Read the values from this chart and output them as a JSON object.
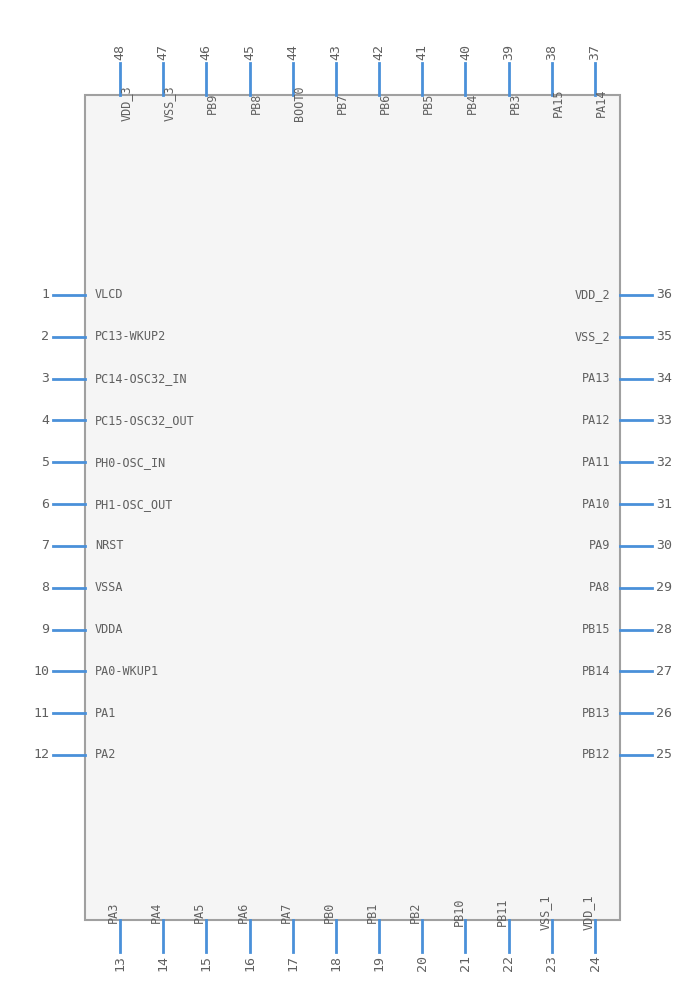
{
  "bg_color": "#ffffff",
  "box_color": "#a0a0a0",
  "pin_color": "#4a90d9",
  "text_color": "#606060",
  "num_color": "#606060",
  "fig_w": 6.88,
  "fig_h": 10.08,
  "top_pins": [
    {
      "num": 48,
      "label": "VDD_3"
    },
    {
      "num": 47,
      "label": "VSS_3"
    },
    {
      "num": 46,
      "label": "PB9"
    },
    {
      "num": 45,
      "label": "PB8"
    },
    {
      "num": 44,
      "label": "BOOT0"
    },
    {
      "num": 43,
      "label": "PB7"
    },
    {
      "num": 42,
      "label": "PB6"
    },
    {
      "num": 41,
      "label": "PB5"
    },
    {
      "num": 40,
      "label": "PB4"
    },
    {
      "num": 39,
      "label": "PB3"
    },
    {
      "num": 38,
      "label": "PA15"
    },
    {
      "num": 37,
      "label": "PA14"
    }
  ],
  "bottom_pins": [
    {
      "num": 13,
      "label": "PA3"
    },
    {
      "num": 14,
      "label": "PA4"
    },
    {
      "num": 15,
      "label": "PA5"
    },
    {
      "num": 16,
      "label": "PA6"
    },
    {
      "num": 17,
      "label": "PA7"
    },
    {
      "num": 18,
      "label": "PB0"
    },
    {
      "num": 19,
      "label": "PB1"
    },
    {
      "num": 20,
      "label": "PB2"
    },
    {
      "num": 21,
      "label": "PB10"
    },
    {
      "num": 22,
      "label": "PB11"
    },
    {
      "num": 23,
      "label": "VSS_1"
    },
    {
      "num": 24,
      "label": "VDD_1"
    }
  ],
  "left_pins": [
    {
      "num": 1,
      "label": "VLCD"
    },
    {
      "num": 2,
      "label": "PC13-WKUP2"
    },
    {
      "num": 3,
      "label": "PC14-OSC32_IN"
    },
    {
      "num": 4,
      "label": "PC15-OSC32_OUT"
    },
    {
      "num": 5,
      "label": "PH0-OSC_IN"
    },
    {
      "num": 6,
      "label": "PH1-OSC_OUT"
    },
    {
      "num": 7,
      "label": "NRST"
    },
    {
      "num": 8,
      "label": "VSSA"
    },
    {
      "num": 9,
      "label": "VDDA"
    },
    {
      "num": 10,
      "label": "PA0-WKUP1"
    },
    {
      "num": 11,
      "label": "PA1"
    },
    {
      "num": 12,
      "label": "PA2"
    }
  ],
  "right_pins": [
    {
      "num": 36,
      "label": "VDD_2"
    },
    {
      "num": 35,
      "label": "VSS_2"
    },
    {
      "num": 34,
      "label": "PA13"
    },
    {
      "num": 33,
      "label": "PA12"
    },
    {
      "num": 32,
      "label": "PA11"
    },
    {
      "num": 31,
      "label": "PA10"
    },
    {
      "num": 30,
      "label": "PA9"
    },
    {
      "num": 29,
      "label": "PA8"
    },
    {
      "num": 28,
      "label": "PB15"
    },
    {
      "num": 27,
      "label": "PB14"
    },
    {
      "num": 26,
      "label": "PB13"
    },
    {
      "num": 25,
      "label": "PB12"
    }
  ]
}
